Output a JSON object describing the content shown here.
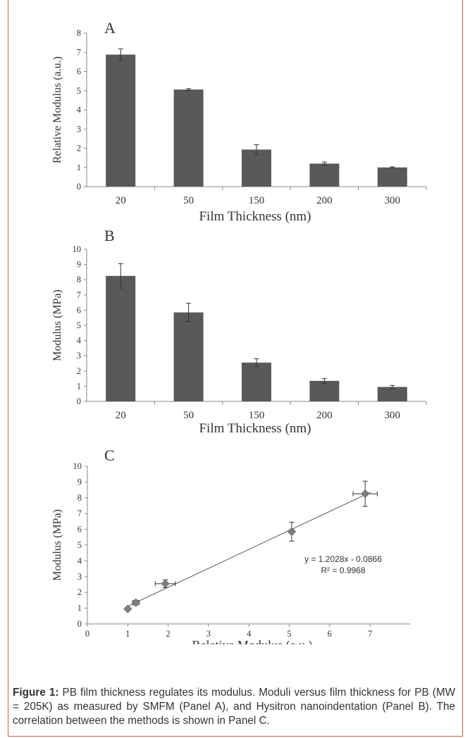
{
  "chart_data": [
    {
      "type": "bar",
      "panel_label": "A",
      "categories": [
        "20",
        "50",
        "150",
        "200",
        "300"
      ],
      "values": [
        6.88,
        5.06,
        1.93,
        1.2,
        1.0
      ],
      "error_bars": [
        0.3,
        0.05,
        0.25,
        0.08,
        0.03
      ],
      "xlabel": "Film Thickness (nm)",
      "ylabel": "Relative Modulus (a.u.)",
      "ylim": [
        0,
        8
      ],
      "yticks": [
        "0",
        "1",
        "2",
        "3",
        "4",
        "5",
        "6",
        "7",
        "8"
      ],
      "bar_color": "#595959",
      "grid": false
    },
    {
      "type": "bar",
      "panel_label": "B",
      "categories": [
        "20",
        "50",
        "150",
        "200",
        "300"
      ],
      "values": [
        8.25,
        5.85,
        2.55,
        1.35,
        0.95
      ],
      "error_bars": [
        0.8,
        0.6,
        0.25,
        0.15,
        0.1
      ],
      "xlabel": "Film Thickness (nm)",
      "ylabel": "Modulus (MPa)",
      "ylim": [
        0,
        10
      ],
      "yticks": [
        "0",
        "1",
        "2",
        "3",
        "4",
        "5",
        "6",
        "7",
        "8",
        "9",
        "10"
      ],
      "bar_color": "#595959",
      "grid": false
    },
    {
      "type": "scatter",
      "panel_label": "C",
      "x": [
        1.0,
        1.2,
        1.93,
        5.06,
        6.88
      ],
      "y": [
        0.95,
        1.35,
        2.55,
        5.85,
        8.25
      ],
      "x_error": [
        0.03,
        0.08,
        0.25,
        0.05,
        0.3
      ],
      "y_error": [
        0.1,
        0.15,
        0.25,
        0.6,
        0.8
      ],
      "trendline": {
        "slope": 1.2028,
        "intercept": -0.0866
      },
      "equation": "y = 1.2028x - 0.0866",
      "r_squared": "R² = 0.9968",
      "xlabel": "Relative Modulus (a.u.)",
      "ylabel": "Modulus (MPa)",
      "xlim": [
        0,
        8
      ],
      "ylim": [
        0,
        10
      ],
      "xticks": [
        "0",
        "1",
        "2",
        "3",
        "4",
        "5",
        "6",
        "7"
      ],
      "yticks": [
        "0",
        "1",
        "2",
        "3",
        "4",
        "5",
        "6",
        "7",
        "8",
        "9",
        "10"
      ],
      "marker_color": "#7f7f7f",
      "grid": false
    }
  ],
  "caption": {
    "label": "Figure 1:",
    "text": "PB film thickness regulates its modulus. Moduli versus film thickness for PB (MW = 205K) as measured by SMFM (Panel A), and Hysitron nanoindentation (Panel B). The correlation between the methods is shown in Panel C."
  }
}
